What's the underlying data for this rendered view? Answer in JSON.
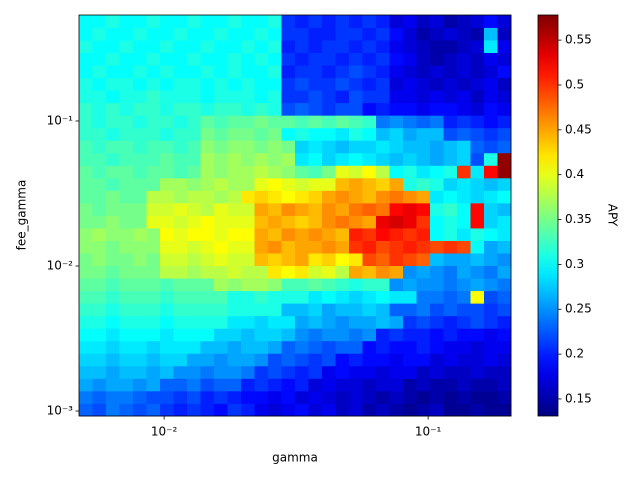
{
  "chart_data": {
    "type": "heatmap",
    "xlabel": "gamma",
    "ylabel": "fee_gamma",
    "colorbar_label": "APY",
    "colormap": "jet",
    "xscale": "log",
    "yscale": "log",
    "xlim": [
      0.00476,
      0.206
    ],
    "ylim": [
      0.000924,
      0.538
    ],
    "xticks": [
      {
        "value": 0.01,
        "label": "10⁻²"
      },
      {
        "value": 0.1,
        "label": "10⁻¹"
      }
    ],
    "yticks": [
      {
        "value": 0.001,
        "label": "10⁻³"
      },
      {
        "value": 0.01,
        "label": "10⁻²"
      },
      {
        "value": 0.1,
        "label": "10⁻¹"
      }
    ],
    "clim": [
      0.131,
      0.578
    ],
    "cticks": [
      0.15,
      0.2,
      0.25,
      0.3,
      0.35,
      0.4,
      0.45,
      0.5,
      0.55
    ],
    "z": [
      [
        0.23,
        0.22,
        0.24,
        0.23,
        0.22,
        0.23,
        0.21,
        0.2,
        0.21,
        0.2,
        0.19,
        0.21,
        0.2,
        0.18,
        0.17,
        0.18,
        0.19,
        0.17,
        0.18,
        0.16,
        0.17,
        0.15,
        0.16,
        0.15,
        0.14,
        0.15,
        0.16,
        0.14,
        0.14,
        0.15,
        0.14,
        0.14
      ],
      [
        0.24,
        0.23,
        0.24,
        0.24,
        0.23,
        0.22,
        0.22,
        0.21,
        0.22,
        0.2,
        0.21,
        0.2,
        0.19,
        0.19,
        0.18,
        0.19,
        0.17,
        0.18,
        0.17,
        0.16,
        0.17,
        0.16,
        0.15,
        0.16,
        0.15,
        0.14,
        0.15,
        0.14,
        0.15,
        0.14,
        0.14,
        0.15
      ],
      [
        0.26,
        0.25,
        0.26,
        0.26,
        0.25,
        0.26,
        0.23,
        0.23,
        0.24,
        0.22,
        0.23,
        0.23,
        0.2,
        0.21,
        0.2,
        0.19,
        0.2,
        0.17,
        0.18,
        0.17,
        0.17,
        0.16,
        0.17,
        0.17,
        0.15,
        0.16,
        0.15,
        0.15,
        0.16,
        0.15,
        0.15,
        0.16
      ],
      [
        0.27,
        0.27,
        0.26,
        0.27,
        0.27,
        0.26,
        0.27,
        0.25,
        0.25,
        0.24,
        0.25,
        0.25,
        0.24,
        0.21,
        0.22,
        0.21,
        0.2,
        0.21,
        0.18,
        0.19,
        0.18,
        0.18,
        0.17,
        0.18,
        0.18,
        0.16,
        0.17,
        0.16,
        0.16,
        0.17,
        0.16,
        0.16
      ],
      [
        0.28,
        0.28,
        0.27,
        0.28,
        0.28,
        0.27,
        0.28,
        0.28,
        0.26,
        0.26,
        0.25,
        0.26,
        0.26,
        0.25,
        0.22,
        0.23,
        0.22,
        0.21,
        0.22,
        0.19,
        0.2,
        0.19,
        0.19,
        0.18,
        0.19,
        0.19,
        0.17,
        0.18,
        0.17,
        0.17,
        0.18,
        0.17
      ],
      [
        0.29,
        0.29,
        0.28,
        0.29,
        0.29,
        0.28,
        0.29,
        0.29,
        0.29,
        0.27,
        0.27,
        0.26,
        0.27,
        0.27,
        0.26,
        0.23,
        0.24,
        0.23,
        0.22,
        0.23,
        0.23,
        0.19,
        0.2,
        0.19,
        0.19,
        0.2,
        0.19,
        0.18,
        0.18,
        0.17,
        0.18,
        0.18
      ],
      [
        0.3,
        0.3,
        0.29,
        0.3,
        0.3,
        0.3,
        0.29,
        0.3,
        0.3,
        0.3,
        0.28,
        0.28,
        0.27,
        0.28,
        0.28,
        0.27,
        0.25,
        0.24,
        0.25,
        0.25,
        0.24,
        0.25,
        0.2,
        0.21,
        0.2,
        0.2,
        0.19,
        0.2,
        0.19,
        0.19,
        0.18,
        0.19
      ],
      [
        0.31,
        0.31,
        0.3,
        0.31,
        0.31,
        0.31,
        0.3,
        0.31,
        0.31,
        0.31,
        0.31,
        0.29,
        0.29,
        0.28,
        0.29,
        0.29,
        0.26,
        0.27,
        0.26,
        0.25,
        0.26,
        0.26,
        0.27,
        0.26,
        0.21,
        0.22,
        0.21,
        0.2,
        0.21,
        0.22,
        0.21,
        0.2
      ],
      [
        0.32,
        0.32,
        0.31,
        0.32,
        0.32,
        0.32,
        0.31,
        0.32,
        0.32,
        0.32,
        0.32,
        0.31,
        0.31,
        0.31,
        0.31,
        0.27,
        0.27,
        0.28,
        0.26,
        0.27,
        0.27,
        0.28,
        0.27,
        0.23,
        0.23,
        0.24,
        0.22,
        0.23,
        0.22,
        0.22,
        0.21,
        0.22
      ],
      [
        0.33,
        0.33,
        0.32,
        0.33,
        0.33,
        0.33,
        0.32,
        0.33,
        0.33,
        0.33,
        0.33,
        0.31,
        0.31,
        0.32,
        0.31,
        0.31,
        0.31,
        0.29,
        0.3,
        0.29,
        0.28,
        0.29,
        0.3,
        0.29,
        0.29,
        0.24,
        0.24,
        0.23,
        0.24,
        0.41,
        0.22,
        0.23
      ],
      [
        0.34,
        0.34,
        0.33,
        0.34,
        0.34,
        0.34,
        0.33,
        0.34,
        0.34,
        0.34,
        0.37,
        0.36,
        0.37,
        0.37,
        0.36,
        0.33,
        0.33,
        0.34,
        0.33,
        0.32,
        0.31,
        0.32,
        0.32,
        0.25,
        0.26,
        0.25,
        0.25,
        0.24,
        0.25,
        0.26,
        0.25,
        0.24
      ],
      [
        0.35,
        0.35,
        0.34,
        0.35,
        0.35,
        0.35,
        0.38,
        0.38,
        0.37,
        0.38,
        0.38,
        0.39,
        0.38,
        0.38,
        0.42,
        0.41,
        0.42,
        0.39,
        0.4,
        0.38,
        0.45,
        0.44,
        0.46,
        0.45,
        0.25,
        0.26,
        0.25,
        0.24,
        0.26,
        0.25,
        0.24,
        0.26
      ],
      [
        0.35,
        0.36,
        0.35,
        0.35,
        0.36,
        0.35,
        0.39,
        0.39,
        0.38,
        0.39,
        0.4,
        0.39,
        0.39,
        0.44,
        0.43,
        0.44,
        0.45,
        0.42,
        0.43,
        0.41,
        0.42,
        0.49,
        0.48,
        0.5,
        0.49,
        0.48,
        0.27,
        0.26,
        0.26,
        0.27,
        0.26,
        0.25
      ],
      [
        0.36,
        0.36,
        0.35,
        0.36,
        0.36,
        0.36,
        0.4,
        0.4,
        0.39,
        0.4,
        0.41,
        0.4,
        0.4,
        0.45,
        0.46,
        0.44,
        0.45,
        0.45,
        0.46,
        0.45,
        0.5,
        0.51,
        0.49,
        0.5,
        0.51,
        0.5,
        0.49,
        0.5,
        0.49,
        0.3,
        0.26,
        0.27
      ],
      [
        0.36,
        0.37,
        0.36,
        0.36,
        0.37,
        0.36,
        0.41,
        0.4,
        0.41,
        0.41,
        0.4,
        0.41,
        0.41,
        0.45,
        0.44,
        0.46,
        0.45,
        0.46,
        0.45,
        0.44,
        0.51,
        0.5,
        0.52,
        0.51,
        0.5,
        0.51,
        0.3,
        0.31,
        0.29,
        0.31,
        0.3,
        0.29
      ],
      [
        0.35,
        0.35,
        0.36,
        0.35,
        0.35,
        0.4,
        0.4,
        0.39,
        0.4,
        0.41,
        0.4,
        0.4,
        0.4,
        0.44,
        0.45,
        0.44,
        0.43,
        0.44,
        0.46,
        0.47,
        0.46,
        0.45,
        0.53,
        0.54,
        0.53,
        0.5,
        0.3,
        0.31,
        0.3,
        0.52,
        0.28,
        0.29
      ],
      [
        0.35,
        0.34,
        0.35,
        0.35,
        0.35,
        0.39,
        0.39,
        0.4,
        0.39,
        0.38,
        0.4,
        0.39,
        0.39,
        0.45,
        0.44,
        0.46,
        0.45,
        0.44,
        0.46,
        0.45,
        0.47,
        0.48,
        0.47,
        0.52,
        0.53,
        0.52,
        0.31,
        0.32,
        0.3,
        0.52,
        0.28,
        0.27
      ],
      [
        0.34,
        0.34,
        0.35,
        0.34,
        0.34,
        0.38,
        0.38,
        0.37,
        0.38,
        0.38,
        0.37,
        0.38,
        0.42,
        0.43,
        0.42,
        0.41,
        0.42,
        0.43,
        0.45,
        0.46,
        0.45,
        0.44,
        0.46,
        0.47,
        0.46,
        0.45,
        0.29,
        0.3,
        0.29,
        0.28,
        0.29,
        0.3
      ],
      [
        0.34,
        0.34,
        0.33,
        0.34,
        0.34,
        0.34,
        0.37,
        0.37,
        0.36,
        0.37,
        0.38,
        0.37,
        0.37,
        0.4,
        0.41,
        0.4,
        0.39,
        0.4,
        0.4,
        0.44,
        0.45,
        0.44,
        0.43,
        0.45,
        0.31,
        0.32,
        0.31,
        0.28,
        0.29,
        0.28,
        0.27,
        0.28
      ],
      [
        0.34,
        0.33,
        0.34,
        0.34,
        0.33,
        0.34,
        0.34,
        0.33,
        0.34,
        0.37,
        0.36,
        0.37,
        0.37,
        0.38,
        0.37,
        0.36,
        0.34,
        0.33,
        0.35,
        0.4,
        0.39,
        0.41,
        0.38,
        0.3,
        0.31,
        0.29,
        0.3,
        0.31,
        0.5,
        0.29,
        0.52,
        0.57
      ],
      [
        0.33,
        0.33,
        0.32,
        0.33,
        0.33,
        0.33,
        0.34,
        0.33,
        0.33,
        0.37,
        0.36,
        0.37,
        0.36,
        0.37,
        0.36,
        0.37,
        0.29,
        0.3,
        0.28,
        0.29,
        0.3,
        0.29,
        0.28,
        0.27,
        0.28,
        0.27,
        0.26,
        0.27,
        0.28,
        0.22,
        0.31,
        0.57
      ],
      [
        0.33,
        0.32,
        0.33,
        0.33,
        0.32,
        0.33,
        0.33,
        0.32,
        0.33,
        0.36,
        0.35,
        0.36,
        0.36,
        0.35,
        0.36,
        0.35,
        0.28,
        0.29,
        0.28,
        0.27,
        0.28,
        0.28,
        0.29,
        0.28,
        0.27,
        0.27,
        0.26,
        0.27,
        0.28,
        0.23,
        0.22,
        0.23
      ],
      [
        0.32,
        0.32,
        0.31,
        0.32,
        0.32,
        0.32,
        0.31,
        0.32,
        0.32,
        0.35,
        0.34,
        0.35,
        0.35,
        0.34,
        0.35,
        0.3,
        0.31,
        0.3,
        0.3,
        0.29,
        0.31,
        0.3,
        0.27,
        0.28,
        0.26,
        0.27,
        0.27,
        0.22,
        0.23,
        0.22,
        0.21,
        0.22
      ],
      [
        0.32,
        0.31,
        0.32,
        0.32,
        0.31,
        0.32,
        0.32,
        0.31,
        0.32,
        0.34,
        0.33,
        0.34,
        0.34,
        0.35,
        0.34,
        0.34,
        0.33,
        0.34,
        0.33,
        0.34,
        0.33,
        0.32,
        0.24,
        0.25,
        0.24,
        0.23,
        0.24,
        0.2,
        0.21,
        0.2,
        0.19,
        0.2
      ],
      [
        0.32,
        0.31,
        0.32,
        0.31,
        0.32,
        0.32,
        0.31,
        0.32,
        0.32,
        0.31,
        0.32,
        0.32,
        0.31,
        0.32,
        0.31,
        0.22,
        0.23,
        0.22,
        0.21,
        0.22,
        0.22,
        0.19,
        0.2,
        0.19,
        0.19,
        0.18,
        0.19,
        0.19,
        0.18,
        0.17,
        0.19,
        0.18
      ],
      [
        0.31,
        0.31,
        0.3,
        0.31,
        0.31,
        0.32,
        0.31,
        0.31,
        0.31,
        0.3,
        0.31,
        0.31,
        0.31,
        0.3,
        0.31,
        0.21,
        0.21,
        0.22,
        0.21,
        0.2,
        0.22,
        0.21,
        0.21,
        0.18,
        0.18,
        0.17,
        0.18,
        0.17,
        0.18,
        0.16,
        0.18,
        0.17
      ],
      [
        0.31,
        0.3,
        0.31,
        0.31,
        0.3,
        0.31,
        0.3,
        0.31,
        0.31,
        0.3,
        0.31,
        0.3,
        0.31,
        0.3,
        0.3,
        0.21,
        0.22,
        0.21,
        0.21,
        0.22,
        0.21,
        0.2,
        0.21,
        0.17,
        0.18,
        0.17,
        0.16,
        0.17,
        0.16,
        0.17,
        0.18,
        0.16
      ],
      [
        0.3,
        0.31,
        0.3,
        0.3,
        0.31,
        0.3,
        0.31,
        0.3,
        0.3,
        0.31,
        0.3,
        0.31,
        0.3,
        0.3,
        0.31,
        0.2,
        0.21,
        0.21,
        0.2,
        0.21,
        0.22,
        0.21,
        0.2,
        0.18,
        0.17,
        0.16,
        0.17,
        0.16,
        0.17,
        0.16,
        0.17,
        0.19
      ],
      [
        0.3,
        0.3,
        0.31,
        0.3,
        0.3,
        0.31,
        0.3,
        0.3,
        0.31,
        0.3,
        0.3,
        0.31,
        0.3,
        0.31,
        0.3,
        0.21,
        0.2,
        0.21,
        0.21,
        0.2,
        0.21,
        0.2,
        0.21,
        0.19,
        0.18,
        0.16,
        0.15,
        0.16,
        0.17,
        0.16,
        0.18,
        0.17
      ],
      [
        0.31,
        0.3,
        0.3,
        0.31,
        0.3,
        0.3,
        0.31,
        0.3,
        0.3,
        0.31,
        0.3,
        0.3,
        0.31,
        0.3,
        0.31,
        0.2,
        0.21,
        0.2,
        0.21,
        0.21,
        0.2,
        0.21,
        0.2,
        0.18,
        0.17,
        0.16,
        0.15,
        0.15,
        0.16,
        0.17,
        0.29,
        0.18
      ],
      [
        0.3,
        0.31,
        0.3,
        0.3,
        0.31,
        0.3,
        0.3,
        0.31,
        0.3,
        0.3,
        0.31,
        0.3,
        0.3,
        0.31,
        0.3,
        0.21,
        0.21,
        0.2,
        0.2,
        0.21,
        0.21,
        0.2,
        0.21,
        0.19,
        0.17,
        0.15,
        0.16,
        0.17,
        0.16,
        0.15,
        0.27,
        0.16
      ],
      [
        0.3,
        0.3,
        0.31,
        0.3,
        0.3,
        0.31,
        0.3,
        0.3,
        0.31,
        0.3,
        0.3,
        0.31,
        0.3,
        0.3,
        0.31,
        0.21,
        0.2,
        0.21,
        0.2,
        0.21,
        0.2,
        0.21,
        0.2,
        0.17,
        0.18,
        0.16,
        0.17,
        0.15,
        0.16,
        0.17,
        0.19,
        0.17
      ]
    ]
  }
}
